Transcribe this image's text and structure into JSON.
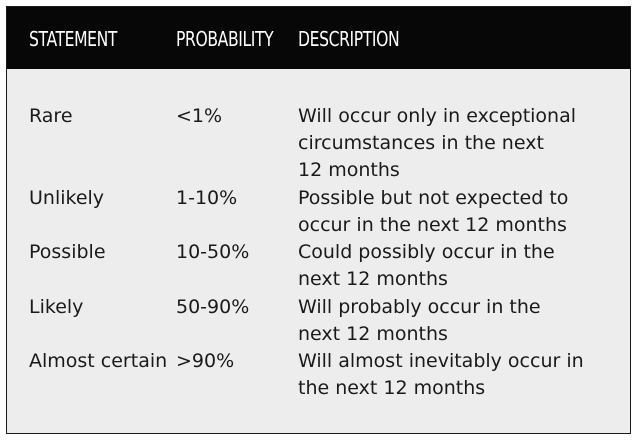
{
  "header": {
    "statement": "STATEMENT",
    "probability": "PROBABILITY",
    "description": "DESCRIPTION"
  },
  "rows": [
    {
      "statement": "Rare",
      "probability": "<1%",
      "description": [
        "Will occur only in exceptional",
        "circumstances in the next",
        "12 months"
      ]
    },
    {
      "statement": "Unlikely",
      "probability": "1-10%",
      "description": [
        "Possible but not expected to",
        "occur in the next 12 months"
      ]
    },
    {
      "statement": "Possible",
      "probability": "10-50%",
      "description": [
        "Could possibly occur in the",
        "next 12 months"
      ]
    },
    {
      "statement": "Likely",
      "probability": "50-90%",
      "description": [
        "Will probably occur in the",
        "next 12 months"
      ]
    },
    {
      "statement": "Almost certain",
      "probability": ">90%",
      "description": [
        "Will almost inevitably occur in",
        "the next 12 months"
      ]
    }
  ]
}
